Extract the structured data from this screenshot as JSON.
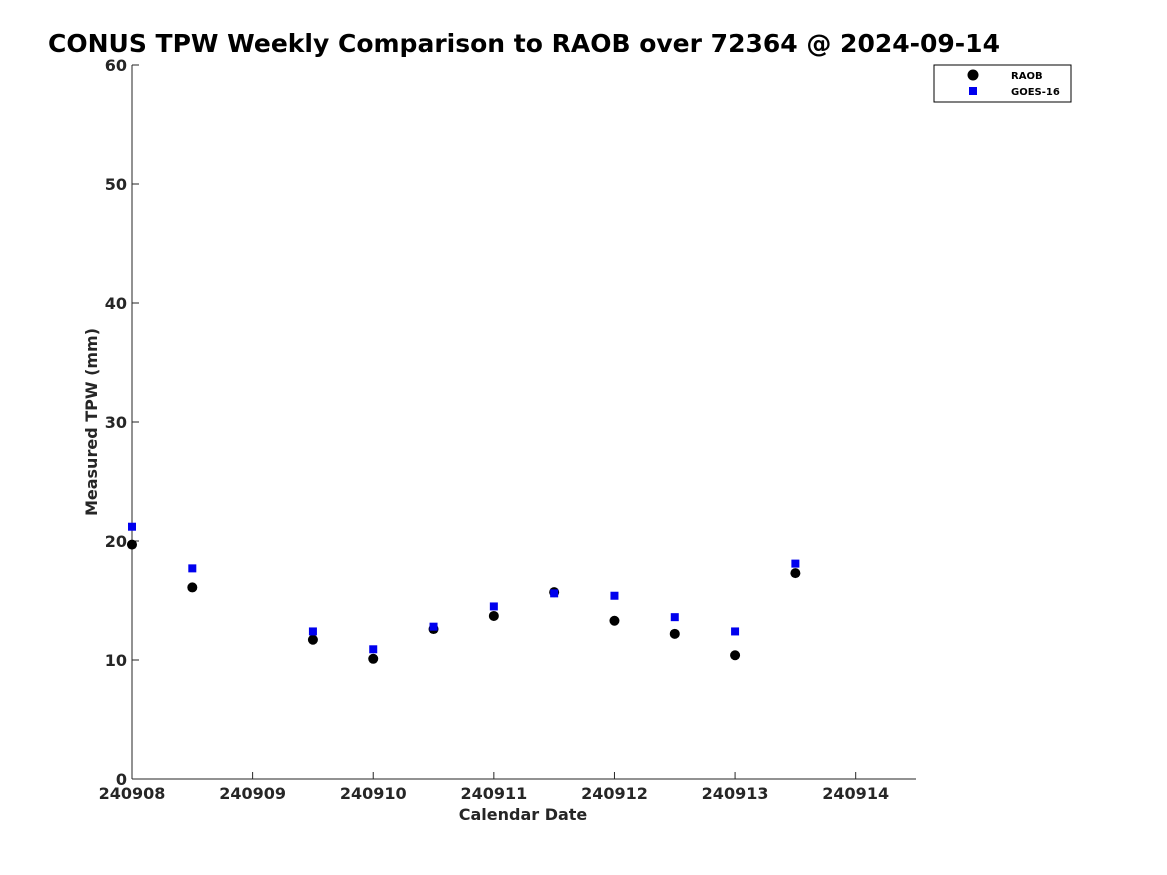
{
  "chart_data": {
    "type": "scatter",
    "title": "CONUS TPW Weekly Comparison to RAOB over 72364 @ 2024-09-14",
    "xlabel": "Calendar Date",
    "ylabel": "Measured TPW (mm)",
    "x_tick_labels": [
      "240908",
      "240909",
      "240910",
      "240911",
      "240912",
      "240913",
      "240914"
    ],
    "y_tick_labels": [
      "0",
      "10",
      "20",
      "30",
      "40",
      "50",
      "60"
    ],
    "xlim": [
      "2024-09-08 00:00",
      "2024-09-14 12:00"
    ],
    "ylim": [
      0,
      60
    ],
    "grid": false,
    "legend_position": "top-right, outside plot area",
    "series": [
      {
        "name": "RAOB",
        "marker": "circle",
        "color": "#000000",
        "x": [
          "2024-09-08 00:00",
          "2024-09-08 12:00",
          "2024-09-09 12:00",
          "2024-09-10 00:00",
          "2024-09-10 12:00",
          "2024-09-11 00:00",
          "2024-09-11 12:00",
          "2024-09-12 00:00",
          "2024-09-12 12:00",
          "2024-09-13 00:00",
          "2024-09-13 12:00"
        ],
        "y": [
          19.7,
          16.1,
          11.7,
          10.1,
          12.6,
          13.7,
          15.7,
          13.3,
          12.2,
          10.4,
          17.3
        ]
      },
      {
        "name": "GOES-16",
        "marker": "square",
        "color": "#0000ee",
        "x": [
          "2024-09-08 00:00",
          "2024-09-08 12:00",
          "2024-09-09 12:00",
          "2024-09-10 00:00",
          "2024-09-10 12:00",
          "2024-09-11 00:00",
          "2024-09-11 12:00",
          "2024-09-12 00:00",
          "2024-09-12 12:00",
          "2024-09-13 00:00",
          "2024-09-13 12:00"
        ],
        "y": [
          21.2,
          17.7,
          12.4,
          10.9,
          12.8,
          14.5,
          15.6,
          15.4,
          13.6,
          12.4,
          18.1
        ]
      }
    ]
  }
}
